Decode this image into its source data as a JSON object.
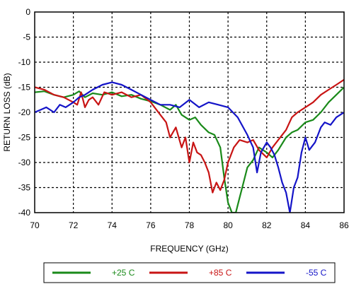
{
  "chart_data": {
    "type": "line",
    "xlabel": "FREQUENCY (GHz)",
    "ylabel": "RETURN LOSS (dB)",
    "xlim": [
      70,
      86
    ],
    "ylim": [
      -40,
      0
    ],
    "xticks": [
      70,
      72,
      74,
      76,
      78,
      80,
      82,
      84,
      86
    ],
    "yticks": [
      0,
      -5,
      -10,
      -15,
      -20,
      -25,
      -30,
      -35,
      -40
    ],
    "grid": "dotted",
    "legend_position": "bottom",
    "series": [
      {
        "name": "+25 C",
        "color": "#1a8a1a",
        "x": [
          70,
          70.5,
          71,
          71.5,
          72,
          72.3,
          72.6,
          73,
          73.5,
          74,
          74.5,
          75,
          75.5,
          76,
          76.5,
          77,
          77.3,
          77.6,
          78,
          78.3,
          78.6,
          79,
          79.3,
          79.6,
          79.8,
          80,
          80.2,
          80.4,
          80.6,
          80.8,
          81,
          81.3,
          81.6,
          82,
          82.3,
          82.6,
          83,
          83.3,
          83.6,
          84,
          84.4,
          84.8,
          85.2,
          85.6,
          86
        ],
        "y": [
          -16,
          -15.8,
          -16.5,
          -17,
          -16.5,
          -15.8,
          -17,
          -16.2,
          -16.5,
          -16,
          -16.8,
          -16.5,
          -17.3,
          -17.8,
          -18.5,
          -19.5,
          -18.5,
          -20.5,
          -21.5,
          -21,
          -22.5,
          -24,
          -24.5,
          -27,
          -33,
          -38,
          -40,
          -40,
          -37,
          -34,
          -31,
          -29.5,
          -27,
          -28,
          -29,
          -27.5,
          -25,
          -24,
          -23.5,
          -22,
          -21.5,
          -20,
          -18,
          -16.5,
          -15
        ]
      },
      {
        "name": "+85 C",
        "color": "#c81414",
        "x": [
          70,
          70.5,
          71,
          71.5,
          72,
          72.2,
          72.4,
          72.6,
          72.8,
          73,
          73.3,
          73.6,
          74,
          74.5,
          75,
          75.5,
          76,
          76.5,
          76.8,
          77,
          77.3,
          77.6,
          77.8,
          78,
          78.2,
          78.4,
          78.6,
          78.8,
          79,
          79.2,
          79.4,
          79.6,
          79.8,
          80,
          80.3,
          80.6,
          81,
          81.3,
          81.6,
          82,
          82.3,
          82.6,
          83,
          83.3,
          83.6,
          84,
          84.4,
          84.8,
          85.2,
          85.6,
          86
        ],
        "y": [
          -15,
          -15.5,
          -16.5,
          -17,
          -18,
          -18.5,
          -16,
          -19,
          -17.5,
          -17,
          -18.5,
          -16,
          -16.5,
          -16,
          -17,
          -16.5,
          -18,
          -20.5,
          -22,
          -25,
          -23,
          -27,
          -25,
          -30,
          -26,
          -28,
          -28.5,
          -30,
          -32,
          -36,
          -34,
          -35.5,
          -33.5,
          -30,
          -27,
          -25.5,
          -26,
          -25.5,
          -27.5,
          -29,
          -27,
          -25.5,
          -23.5,
          -21,
          -20,
          -19,
          -18,
          -16.5,
          -15.5,
          -14.5,
          -13.5
        ]
      },
      {
        "name": "-55 C",
        "color": "#1414c8",
        "x": [
          70,
          70.3,
          70.6,
          71,
          71.3,
          71.6,
          72,
          72.3,
          72.6,
          73,
          73.5,
          74,
          74.5,
          75,
          75.5,
          76,
          76.5,
          77,
          77.5,
          78,
          78.5,
          79,
          79.5,
          80,
          80.5,
          81,
          81.3,
          81.5,
          81.7,
          82,
          82.2,
          82.4,
          82.6,
          82.8,
          83,
          83.2,
          83.4,
          83.6,
          83.8,
          84,
          84.2,
          84.5,
          84.8,
          85,
          85.3,
          85.6,
          86
        ],
        "y": [
          -20,
          -19.5,
          -19,
          -20,
          -18.5,
          -19,
          -18,
          -17,
          -16.5,
          -15.5,
          -14.5,
          -14,
          -14.5,
          -15.5,
          -16.5,
          -17.5,
          -18.5,
          -18.5,
          -19,
          -17.5,
          -19,
          -18,
          -18.5,
          -19,
          -21,
          -24.5,
          -27,
          -32,
          -28,
          -26,
          -27,
          -28.5,
          -31,
          -34,
          -36,
          -40,
          -35,
          -33,
          -28,
          -25,
          -27.5,
          -26,
          -23,
          -22,
          -22.5,
          -21,
          -20
        ]
      }
    ]
  }
}
